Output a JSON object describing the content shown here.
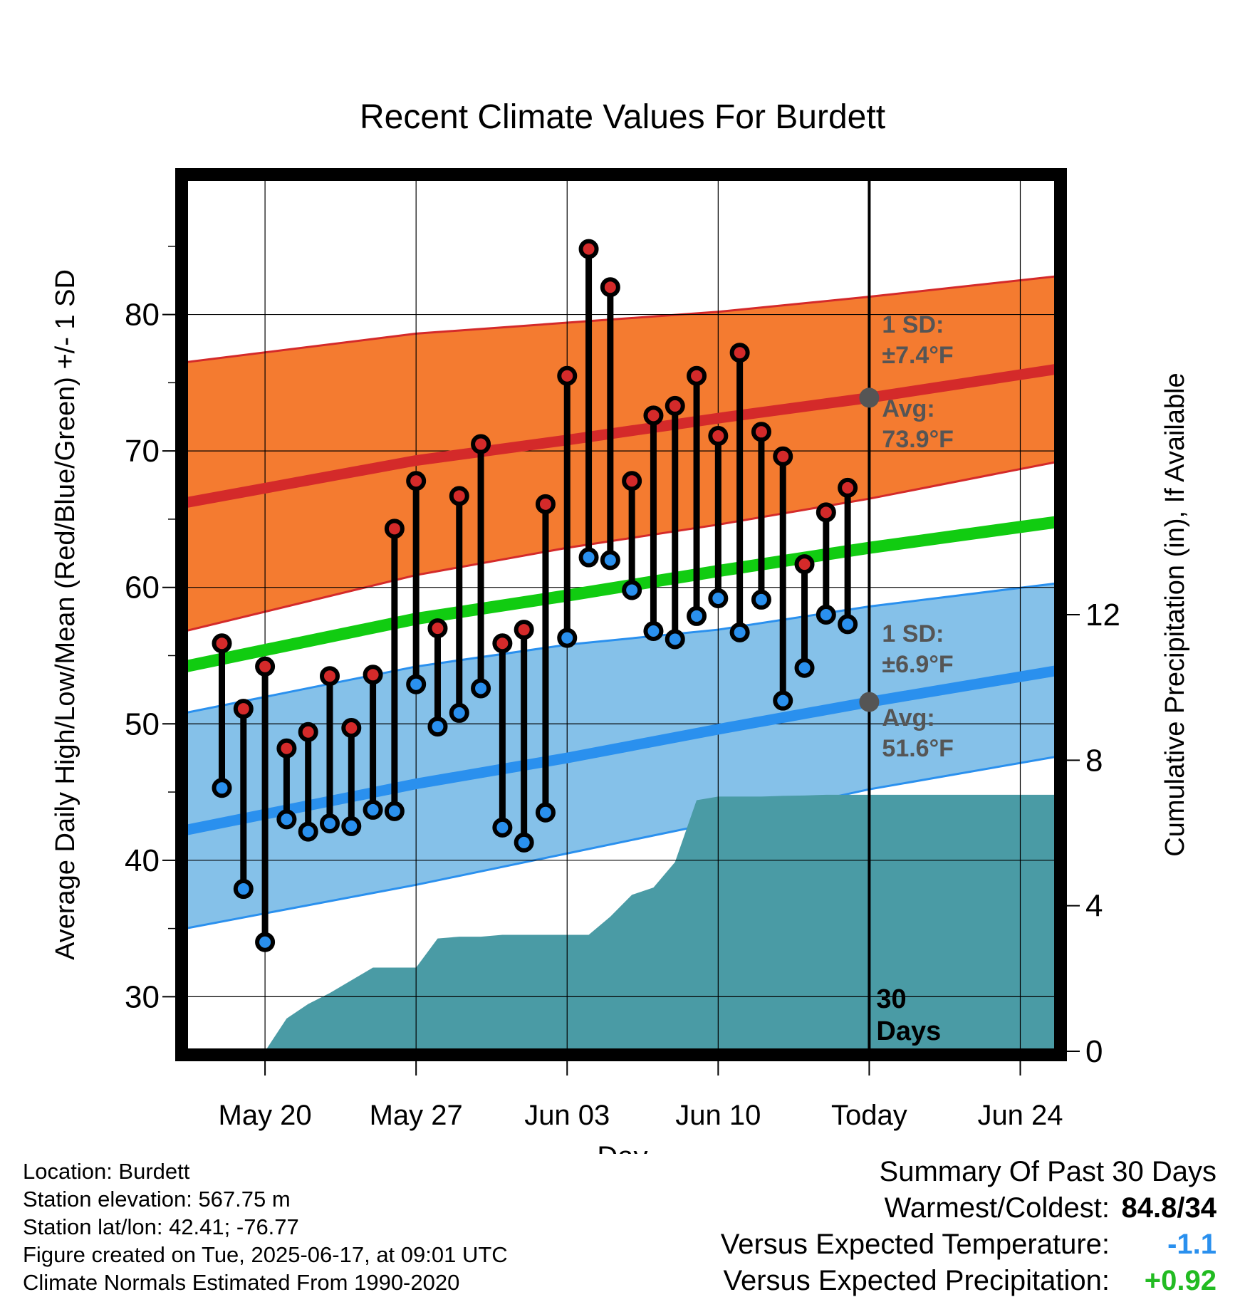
{
  "chart_data": {
    "type": "line",
    "title": "Recent Climate Values For Burdett",
    "xlabel": "Day",
    "ylabel": "Average Daily High/Low/Mean (Red/Blue/Green) +/- 1 SD",
    "y2label": "Cumulative Precipitation (in), If Available",
    "x_tick_labels": [
      "May 20",
      "May 27",
      "Jun 03",
      "Jun 10",
      "Today",
      "Jun 24"
    ],
    "x_tick_days": [
      3,
      10,
      17,
      24,
      31,
      38
    ],
    "xlim": [
      -0.7,
      39.7
    ],
    "ylim": [
      26,
      90
    ],
    "y_ticks": [
      30,
      40,
      50,
      60,
      70,
      80
    ],
    "y2lim": [
      0,
      24
    ],
    "y2_ticks": [
      0,
      4,
      8,
      12
    ],
    "grid": true,
    "today_day": 31,
    "today_label": "30 Days",
    "normals": {
      "days": [
        -0.7,
        10,
        17,
        24,
        31,
        39.7
      ],
      "high_mean": [
        66.2,
        69.3,
        70.8,
        72.4,
        73.9,
        76.0
      ],
      "high_upper": [
        76.5,
        78.6,
        79.4,
        80.2,
        81.3,
        82.8
      ],
      "high_lower": [
        56.8,
        60.9,
        62.9,
        64.6,
        66.5,
        69.2
      ],
      "mean": [
        54.2,
        57.7,
        59.4,
        61.2,
        62.9,
        64.8
      ],
      "low_mean": [
        42.2,
        45.6,
        47.5,
        49.6,
        51.6,
        53.9
      ],
      "low_upper": [
        50.8,
        54.2,
        55.8,
        56.9,
        58.6,
        60.3
      ],
      "low_lower": [
        35.0,
        38.2,
        40.5,
        42.8,
        45.2,
        47.6
      ]
    },
    "annotations": {
      "high_sd": "1 SD:",
      "high_sd_value": "±7.4°F",
      "high_avg": "Avg:",
      "high_avg_value": "73.9°F",
      "low_sd": "1 SD:",
      "low_sd_value": "±6.9°F",
      "low_avg": "Avg:",
      "low_avg_value": "51.6°F"
    },
    "series": [
      {
        "name": "High",
        "color": "#d42a2a",
        "days": [
          1,
          2,
          3,
          4,
          5,
          6,
          7,
          8,
          9,
          10,
          11,
          12,
          13,
          14,
          15,
          16,
          17,
          18,
          19,
          20,
          21,
          22,
          23,
          24,
          25,
          26,
          27,
          28,
          29,
          30
        ],
        "values": [
          55.9,
          51.1,
          54.2,
          48.2,
          49.4,
          53.5,
          49.7,
          53.6,
          64.3,
          67.8,
          57.0,
          66.7,
          70.5,
          55.9,
          56.9,
          66.1,
          75.5,
          84.8,
          82.0,
          67.8,
          72.6,
          73.3,
          75.5,
          71.1,
          77.2,
          71.4,
          69.6,
          61.7,
          65.5,
          67.3
        ]
      },
      {
        "name": "Low",
        "color": "#2a90ee",
        "days": [
          1,
          2,
          3,
          4,
          5,
          6,
          7,
          8,
          9,
          10,
          11,
          12,
          13,
          14,
          15,
          16,
          17,
          18,
          19,
          20,
          21,
          22,
          23,
          24,
          25,
          26,
          27,
          28,
          29,
          30
        ],
        "values": [
          45.3,
          37.9,
          34.0,
          43.0,
          42.1,
          42.7,
          42.5,
          43.7,
          43.6,
          52.9,
          49.8,
          50.8,
          52.6,
          42.4,
          41.3,
          43.5,
          56.3,
          62.2,
          62.0,
          59.8,
          56.8,
          56.2,
          57.9,
          59.2,
          56.7,
          59.1,
          51.7,
          54.1,
          58.0,
          57.3
        ]
      },
      {
        "name": "Cumulative Precipitation",
        "color": "#4a9ba5",
        "days": [
          3,
          4,
          5,
          6,
          7,
          8,
          9,
          10,
          11,
          12,
          13,
          14,
          15,
          16,
          17,
          18,
          19,
          20,
          21,
          22,
          23,
          24,
          25,
          26,
          27,
          28,
          29,
          30,
          31,
          39.7
        ],
        "values": [
          0,
          0.9,
          1.3,
          1.6,
          1.95,
          2.3,
          2.3,
          2.3,
          3.1,
          3.15,
          3.15,
          3.2,
          3.2,
          3.2,
          3.2,
          3.2,
          3.7,
          4.3,
          4.5,
          5.2,
          6.9,
          7.0,
          7.0,
          7.0,
          7.02,
          7.03,
          7.05,
          7.05,
          7.05,
          7.05
        ]
      }
    ]
  },
  "footer": {
    "location": "Location: Burdett",
    "elevation": "Station elevation: 567.75 m",
    "latlon": "Station lat/lon: 42.41; -76.77",
    "created": "Figure created on Tue, 2025-06-17, at 09:01 UTC",
    "normals": "Climate Normals Estimated From 1990-2020"
  },
  "summary": {
    "title": "Summary Of Past 30 Days",
    "warm_label": "Warmest/Coldest:",
    "warm_value": "84.8/34",
    "temp_label": "Versus Expected Temperature:",
    "temp_value": "-1.1",
    "temp_color": "#2a90ee",
    "precip_label": "Versus Expected Precipitation:",
    "precip_value": "+0.92",
    "precip_color": "#22bb22"
  }
}
